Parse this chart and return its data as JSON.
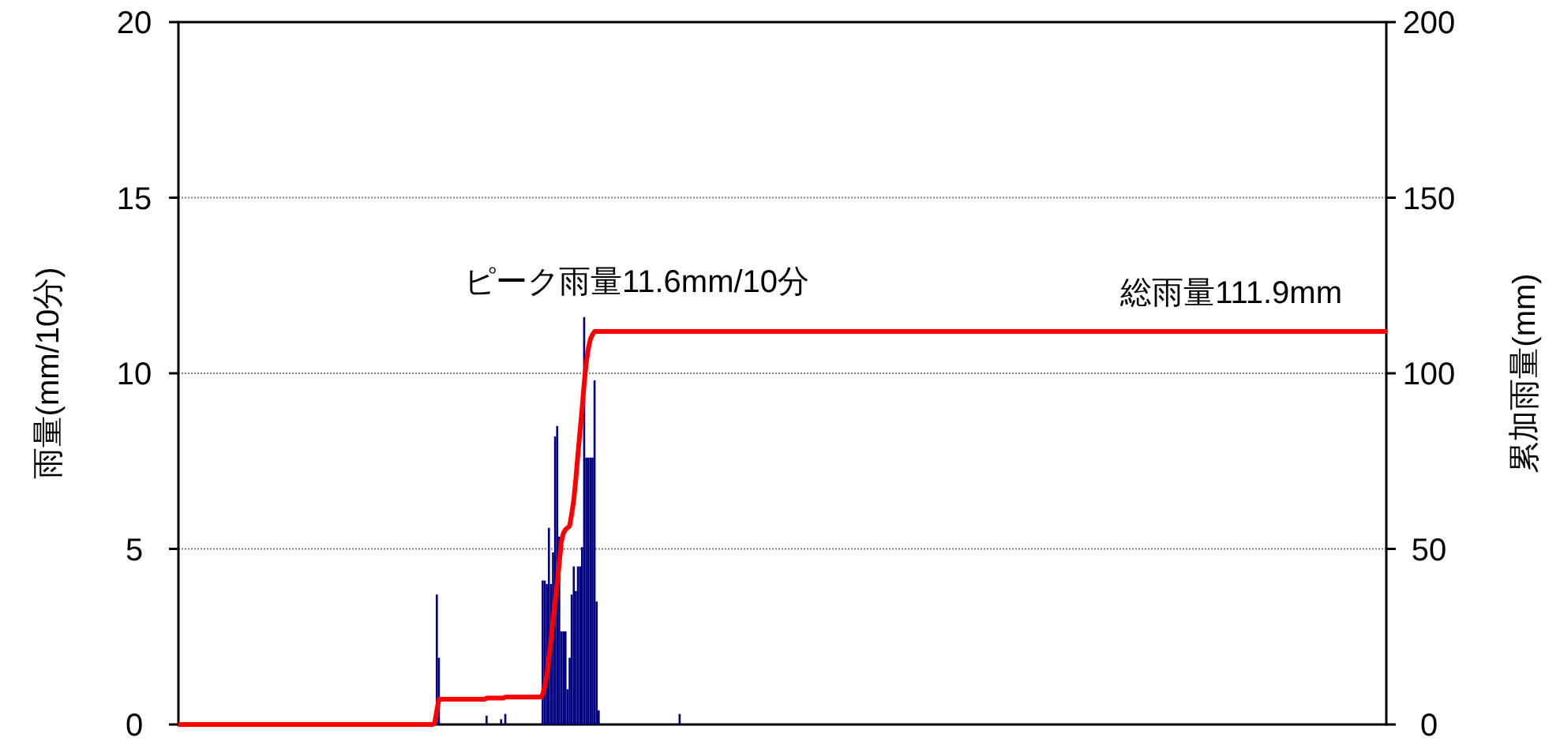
{
  "chart_data": {
    "type": "bar",
    "ylabel": "雨量(mm/10分)",
    "y2label": "累加雨量(mm)",
    "annotations": [
      "ピーク雨量11.6mm/10分",
      "総雨量111.9mm"
    ],
    "ylim": [
      0,
      20
    ],
    "yticks": [
      0,
      5,
      10,
      15,
      20
    ],
    "y2lim": [
      0,
      200
    ],
    "y2ticks": [
      0,
      50,
      100,
      150,
      200
    ],
    "grid": "y",
    "categories": [
      null,
      null,
      null,
      null,
      null,
      null,
      null,
      null,
      null,
      null,
      null,
      null,
      null,
      null,
      null,
      null,
      null,
      null,
      null,
      null,
      null,
      null,
      null,
      null,
      null,
      null,
      null,
      null,
      null,
      null,
      null,
      null,
      null,
      null,
      null,
      null,
      null,
      null,
      null,
      null,
      null,
      null,
      null,
      null,
      null,
      null,
      null,
      null,
      null,
      null,
      null,
      null,
      null,
      null,
      null,
      null,
      null,
      null,
      null,
      null,
      null,
      null,
      null,
      null,
      null,
      null,
      null,
      null,
      null,
      null,
      null,
      null,
      null,
      null,
      null,
      null,
      null,
      null,
      null,
      null,
      null,
      null,
      null,
      null,
      null,
      null,
      null,
      null,
      null,
      null,
      null,
      null,
      null,
      null,
      null,
      null,
      null,
      null,
      null,
      null,
      null,
      null,
      null,
      null,
      null,
      null,
      null,
      null,
      null,
      null,
      null,
      null,
      null,
      null,
      null,
      null,
      null,
      null,
      null,
      null,
      null,
      null,
      null,
      null,
      null,
      null,
      null,
      null,
      null,
      null,
      null,
      null,
      null,
      null,
      null,
      null,
      null,
      null,
      null,
      null,
      null,
      null,
      null,
      null,
      null,
      null,
      null,
      null,
      null,
      null,
      null,
      null,
      null,
      null,
      null,
      null,
      null,
      null,
      null,
      null,
      null,
      null,
      null,
      null,
      null,
      null,
      null,
      null,
      null,
      null,
      null,
      null,
      null,
      null,
      null,
      null,
      null,
      null,
      null,
      null,
      null,
      null,
      null,
      null,
      null,
      null,
      null,
      null,
      null,
      null,
      null,
      null,
      null,
      null,
      null,
      null,
      null,
      null,
      null,
      null,
      null,
      null,
      null,
      null,
      null,
      null,
      null,
      null,
      null,
      null,
      null,
      null,
      null,
      null,
      null,
      null,
      null,
      null,
      null,
      null,
      null,
      null,
      null,
      null,
      null,
      null,
      null,
      null,
      null,
      null,
      null,
      null,
      null,
      null,
      null,
      null,
      null,
      null,
      null,
      null,
      null,
      null,
      null,
      null,
      null,
      null,
      null,
      null,
      null,
      null,
      null,
      null,
      null,
      null,
      null,
      null,
      null,
      null,
      null,
      null,
      null,
      null,
      null,
      null,
      null,
      null,
      null,
      null,
      null,
      null,
      null,
      null,
      null,
      null,
      null,
      null,
      null,
      null,
      null,
      null,
      null,
      null,
      null,
      null,
      null,
      null,
      null,
      null,
      null,
      null,
      null,
      null,
      null,
      null,
      null,
      null,
      null,
      null,
      null,
      null,
      null,
      null,
      null,
      null,
      null,
      null,
      null,
      null,
      null,
      null,
      null,
      null,
      null,
      null,
      null,
      null,
      null,
      null,
      null,
      null,
      null,
      null,
      null,
      null,
      null,
      null,
      null,
      null,
      null,
      null,
      null,
      null,
      null,
      null,
      null,
      null,
      null,
      null,
      null,
      null,
      null,
      null,
      null,
      null,
      null,
      null,
      null,
      null,
      null,
      null,
      null,
      null,
      null,
      null,
      null,
      null,
      null,
      null,
      null,
      null,
      null,
      null,
      null,
      null,
      null,
      null,
      null,
      null,
      null,
      null,
      null,
      null,
      null,
      null,
      null,
      null,
      null,
      null,
      null,
      null,
      null,
      null,
      null,
      null,
      null,
      null,
      null,
      null,
      null,
      null,
      null,
      null,
      null,
      null,
      null,
      null,
      null,
      null,
      null,
      null,
      null,
      null,
      null,
      null,
      null,
      null,
      null,
      null,
      null,
      null,
      null,
      null,
      null,
      null,
      null,
      null,
      null,
      null,
      null,
      null,
      null,
      null,
      null,
      null,
      null,
      null,
      null,
      null,
      null,
      null,
      null,
      null,
      null,
      null,
      null,
      null,
      null,
      null,
      null,
      null,
      null,
      null,
      null,
      null,
      null,
      null,
      null,
      null,
      null,
      null,
      null,
      null,
      null,
      null,
      null,
      null,
      null,
      null,
      null,
      null,
      null,
      null,
      null,
      null,
      null,
      null,
      null,
      null,
      null,
      null,
      null,
      null,
      null,
      null,
      null,
      null,
      null,
      null,
      null,
      null,
      null,
      null,
      null,
      null,
      null,
      null,
      null,
      null,
      null,
      null,
      null,
      null,
      null,
      null,
      null,
      null,
      null,
      null,
      null,
      null,
      null,
      null,
      null,
      null,
      null,
      null,
      null,
      null,
      null,
      null,
      null,
      null,
      null,
      null,
      null,
      null,
      null,
      null,
      null,
      null,
      null,
      null,
      null,
      null,
      null,
      null,
      null,
      null,
      null,
      null,
      null,
      null,
      null,
      null,
      null,
      null,
      null,
      null,
      null,
      null,
      null,
      null,
      null,
      null,
      null,
      null,
      null,
      null,
      null,
      null,
      null,
      null,
      null,
      null,
      null,
      null,
      null,
      null,
      null,
      null,
      null,
      null,
      null,
      null,
      null,
      null,
      null,
      null,
      null,
      null,
      null,
      null,
      null,
      null,
      null,
      null,
      null,
      null,
      null,
      null,
      null,
      null
    ],
    "series": [
      {
        "color": "#000080",
        "values": [
          0,
          0,
          0,
          0,
          0,
          0,
          0,
          0,
          0,
          0,
          0,
          0,
          0,
          0,
          0,
          0,
          0,
          0,
          0,
          0,
          0,
          0,
          0,
          0,
          0,
          0,
          0,
          0,
          0,
          0,
          0,
          0,
          0,
          0,
          0,
          0,
          0,
          0,
          0,
          0,
          0,
          0,
          0,
          0,
          0,
          0,
          0,
          0,
          0,
          0,
          0,
          0,
          0,
          0,
          0,
          0,
          0,
          0,
          0,
          0,
          0,
          0,
          0,
          0,
          0,
          0,
          0,
          0,
          0,
          0,
          0,
          0,
          0,
          0,
          0,
          0,
          0,
          0,
          0,
          0,
          0,
          0,
          0,
          0,
          0,
          0,
          0,
          0,
          0,
          0,
          0,
          0,
          0,
          0,
          0,
          0,
          0,
          0,
          0,
          0,
          0,
          0,
          0,
          0,
          0,
          0,
          0,
          0,
          0,
          0,
          0,
          0,
          0,
          0,
          0,
          0,
          0,
          0,
          0,
          0,
          0,
          0,
          0,
          null,
          3.7,
          1.9,
          0,
          0,
          0,
          0,
          0,
          0,
          0,
          0,
          0,
          0,
          0,
          0,
          0,
          0,
          0,
          0,
          0,
          0,
          0,
          0,
          0,
          0,
          0.25,
          0,
          0,
          0,
          0,
          0,
          0,
          0.15,
          0,
          0.3,
          0,
          0,
          0,
          0,
          0,
          0,
          0,
          0,
          0,
          0,
          0,
          0,
          0,
          0,
          0,
          0,
          0,
          4.1,
          4.1,
          4.0,
          5.6,
          4.0,
          4.9,
          8.2,
          8.5,
          5.35,
          2.65,
          2.65,
          2.65,
          1.0,
          1.9,
          3.7,
          4.5,
          3.8,
          4.5,
          4.5,
          5.05,
          11.6,
          7.6,
          7.6,
          7.6,
          7.6,
          9.8,
          3.5,
          0.4,
          0,
          0,
          0,
          0,
          0,
          0,
          0,
          0,
          0,
          0,
          0,
          0,
          0,
          0,
          0,
          0,
          0,
          0,
          0,
          0,
          0,
          0,
          0,
          0,
          0,
          0,
          0,
          0,
          0,
          0,
          0,
          0,
          0,
          0,
          0,
          0,
          0,
          0,
          0.3,
          0,
          0,
          0,
          0,
          0,
          0,
          0,
          0,
          0,
          0,
          0,
          0,
          0,
          0,
          0,
          0,
          0,
          0,
          0,
          0,
          0,
          0,
          0,
          0,
          0,
          0,
          0,
          0,
          0,
          0,
          0,
          0,
          0,
          0,
          0,
          0,
          0,
          0,
          0,
          0,
          0,
          0,
          0,
          0,
          0,
          0,
          0,
          0,
          0,
          0,
          0,
          0,
          0,
          0,
          0,
          0,
          0,
          0,
          0,
          0,
          0,
          0,
          0,
          0,
          0,
          0,
          0,
          0,
          0,
          0,
          0,
          0,
          0,
          0,
          0,
          0,
          0,
          0,
          0,
          0,
          0,
          0,
          0,
          0,
          0,
          0,
          0,
          0,
          0,
          0,
          0,
          0,
          0,
          0,
          0,
          0,
          0,
          0,
          0,
          0,
          0,
          0,
          0,
          0,
          0,
          0,
          0,
          0,
          0,
          0,
          0,
          0,
          0,
          0,
          0,
          0,
          0,
          0,
          0,
          0,
          0,
          0,
          0,
          0,
          0,
          0,
          0,
          0,
          0,
          0,
          0,
          0,
          0,
          0,
          0,
          0,
          0,
          0,
          0,
          0,
          0,
          0,
          0,
          0,
          0,
          0,
          0,
          0,
          0,
          0,
          0,
          0,
          0,
          0,
          0,
          0,
          0,
          0,
          0,
          0,
          0,
          0,
          0,
          0,
          0,
          0,
          0,
          0,
          0,
          0,
          0,
          0,
          0,
          0,
          0,
          0,
          0,
          0,
          0,
          0,
          0,
          0,
          0,
          0,
          0,
          0,
          0,
          0,
          0,
          0,
          0,
          0,
          0,
          0,
          0,
          0,
          0,
          0,
          0,
          0,
          0,
          0,
          0,
          0,
          0,
          0,
          0,
          0,
          0,
          0,
          0,
          0,
          0,
          0,
          0,
          0,
          0,
          0,
          0,
          0,
          0,
          0,
          0,
          0,
          0,
          0,
          0,
          0,
          0,
          0,
          0,
          0,
          0,
          0,
          0,
          0,
          0,
          0,
          0,
          0,
          0,
          0,
          0,
          0,
          0,
          0,
          0,
          0,
          0,
          0,
          0,
          0,
          0,
          0,
          0,
          0,
          0,
          0,
          0,
          0,
          0,
          0,
          0,
          0,
          0,
          0,
          0,
          0,
          0,
          0,
          0,
          0,
          0,
          0,
          0,
          0,
          0,
          0,
          0,
          0,
          0,
          0,
          0,
          0,
          0,
          0,
          0,
          0,
          0,
          0,
          0,
          0,
          0,
          0,
          0,
          0,
          0,
          0,
          0,
          0,
          0,
          0,
          0,
          0,
          0,
          0,
          0,
          0,
          0,
          0,
          0,
          0,
          0,
          0,
          0,
          0,
          0,
          0,
          0,
          0,
          0,
          0,
          0,
          0,
          0,
          0,
          0,
          0,
          0,
          0,
          0,
          0,
          0,
          0,
          0,
          0,
          0,
          0,
          0,
          0
        ]
      },
      {
        "type": "line",
        "axis": "y2",
        "color": "#ff0000",
        "values": [
          0,
          0,
          0,
          0,
          0,
          0,
          0,
          0,
          0,
          0,
          0,
          0,
          0,
          0,
          0,
          0,
          0,
          0,
          0,
          0,
          0,
          0,
          0,
          0,
          0,
          0,
          0,
          0,
          0,
          0,
          0,
          0,
          0,
          0,
          0,
          0,
          0,
          0,
          0,
          0,
          0,
          0,
          0,
          0,
          0,
          0,
          0,
          0,
          0,
          0,
          0,
          0,
          0,
          0,
          0,
          0,
          0,
          0,
          0,
          0,
          0,
          0,
          0,
          0,
          0,
          0,
          0,
          0,
          0,
          0,
          0,
          0,
          0,
          0,
          0,
          0,
          0,
          0,
          0,
          0,
          0,
          0,
          0,
          0,
          0,
          0,
          0,
          0,
          0,
          0,
          0,
          0,
          0,
          0,
          0,
          0,
          0,
          0,
          0,
          0,
          0,
          0,
          0,
          0,
          0,
          0,
          0,
          0,
          0,
          0,
          0,
          0,
          0,
          0,
          0,
          0,
          0,
          0,
          0,
          0,
          0,
          0,
          0,
          0.5,
          4,
          7.2,
          7.2,
          7.2,
          7.2,
          7.2,
          7.2,
          7.2,
          7.2,
          7.2,
          7.2,
          7.2,
          7.2,
          7.2,
          7.2,
          7.2,
          7.2,
          7.2,
          7.2,
          7.2,
          7.2,
          7.2,
          7.2,
          7.2,
          7.5,
          7.5,
          7.5,
          7.5,
          7.5,
          7.5,
          7.5,
          7.5,
          7.5,
          7.8,
          7.8,
          7.8,
          7.8,
          7.8,
          7.8,
          7.8,
          7.8,
          7.8,
          7.8,
          7.8,
          7.8,
          7.8,
          7.8,
          7.8,
          7.8,
          7.8,
          7.8,
          8.5,
          11,
          14,
          19,
          24,
          30,
          35,
          40,
          46,
          52,
          54.5,
          55.5,
          56,
          56.5,
          60,
          64,
          70,
          77,
          83.5,
          90,
          97,
          103,
          107,
          109.7,
          111,
          111.9,
          111.9,
          111.9,
          111.9,
          111.9,
          111.9,
          111.9,
          111.9,
          111.9,
          111.9,
          111.9,
          111.9,
          111.9,
          111.9,
          111.9,
          111.9,
          111.9,
          111.9,
          111.9,
          111.9,
          111.9,
          111.9,
          111.9,
          111.9,
          111.9,
          111.9,
          111.9,
          111.9,
          111.9,
          111.9,
          111.9,
          111.9,
          111.9,
          111.9,
          111.9,
          111.9,
          111.9,
          111.9,
          111.9,
          111.9,
          111.9,
          111.9,
          111.9,
          111.9,
          111.9,
          111.9,
          111.9,
          111.9,
          111.9,
          111.9,
          111.9,
          111.9,
          111.9,
          111.9,
          111.9,
          111.9,
          111.9,
          111.9,
          111.9,
          111.9,
          111.9,
          111.9,
          111.9,
          111.9,
          111.9,
          111.9,
          111.9,
          111.9,
          111.9,
          111.9,
          111.9,
          111.9,
          111.9,
          111.9,
          111.9,
          111.9,
          111.9,
          111.9,
          111.9,
          111.9,
          111.9,
          111.9,
          111.9,
          111.9,
          111.9,
          111.9,
          111.9,
          111.9,
          111.9,
          111.9,
          111.9,
          111.9,
          111.9,
          111.9,
          111.9,
          111.9,
          111.9,
          111.9,
          111.9,
          111.9,
          111.9,
          111.9,
          111.9,
          111.9,
          111.9,
          111.9,
          111.9,
          111.9,
          111.9,
          111.9,
          111.9,
          111.9,
          111.9,
          111.9,
          111.9,
          111.9,
          111.9,
          111.9,
          111.9,
          111.9,
          111.9,
          111.9,
          111.9,
          111.9,
          111.9,
          111.9,
          111.9,
          111.9,
          111.9,
          111.9,
          111.9,
          111.9,
          111.9,
          111.9,
          111.9,
          111.9,
          111.9,
          111.9,
          111.9,
          111.9,
          111.9,
          111.9,
          111.9,
          111.9,
          111.9,
          111.9,
          111.9,
          111.9,
          111.9,
          111.9,
          111.9,
          111.9,
          111.9,
          111.9,
          111.9,
          111.9,
          111.9,
          111.9,
          111.9,
          111.9,
          111.9,
          111.9,
          111.9,
          111.9,
          111.9,
          111.9,
          111.9,
          111.9,
          111.9,
          111.9,
          111.9,
          111.9,
          111.9,
          111.9,
          111.9,
          111.9,
          111.9,
          111.9,
          111.9,
          111.9,
          111.9,
          111.9,
          111.9,
          111.9,
          111.9,
          111.9,
          111.9,
          111.9,
          111.9,
          111.9,
          111.9,
          111.9,
          111.9,
          111.9,
          111.9,
          111.9,
          111.9,
          111.9,
          111.9,
          111.9,
          111.9,
          111.9,
          111.9,
          111.9,
          111.9,
          111.9,
          111.9,
          111.9,
          111.9,
          111.9,
          111.9,
          111.9,
          111.9,
          111.9,
          111.9,
          111.9,
          111.9,
          111.9,
          111.9,
          111.9,
          111.9,
          111.9,
          111.9,
          111.9,
          111.9,
          111.9,
          111.9,
          111.9,
          111.9,
          111.9,
          111.9,
          111.9,
          111.9,
          111.9,
          111.9,
          111.9,
          111.9,
          111.9,
          111.9,
          111.9,
          111.9,
          111.9,
          111.9,
          111.9,
          111.9,
          111.9,
          111.9,
          111.9,
          111.9,
          111.9,
          111.9,
          111.9,
          111.9,
          111.9,
          111.9,
          111.9,
          111.9,
          111.9,
          111.9,
          111.9,
          111.9,
          111.9,
          111.9,
          111.9,
          111.9,
          111.9,
          111.9,
          111.9,
          111.9,
          111.9,
          111.9,
          111.9,
          111.9,
          111.9,
          111.9,
          111.9,
          111.9,
          111.9,
          111.9,
          111.9,
          111.9,
          111.9,
          111.9,
          111.9,
          111.9,
          111.9,
          111.9,
          111.9,
          111.9,
          111.9,
          111.9,
          111.9,
          111.9,
          111.9,
          111.9,
          111.9,
          111.9,
          111.9,
          111.9,
          111.9,
          111.9,
          111.9,
          111.9,
          111.9,
          111.9,
          111.9,
          111.9,
          111.9,
          111.9,
          111.9,
          111.9,
          111.9,
          111.9,
          111.9,
          111.9,
          111.9,
          111.9,
          111.9,
          111.9,
          111.9,
          111.9,
          111.9,
          111.9,
          111.9,
          111.9,
          111.9,
          111.9,
          111.9,
          111.9,
          111.9,
          111.9,
          111.9,
          111.9,
          111.9,
          111.9,
          111.9,
          111.9,
          111.9,
          111.9,
          111.9,
          111.9,
          111.9,
          111.9,
          111.9,
          111.9,
          111.9,
          111.9,
          111.9,
          111.9,
          111.9,
          111.9,
          111.9,
          111.9,
          111.9,
          111.9,
          111.9,
          111.9,
          111.9,
          111.9,
          111.9,
          111.9,
          111.9,
          111.9,
          111.9,
          111.9,
          111.9,
          111.9,
          111.9,
          111.9,
          111.9,
          111.9,
          111.9,
          111.9,
          111.9,
          111.9,
          111.9,
          111.9,
          111.9,
          111.9,
          111.9,
          111.9,
          111.9
        ]
      }
    ]
  }
}
